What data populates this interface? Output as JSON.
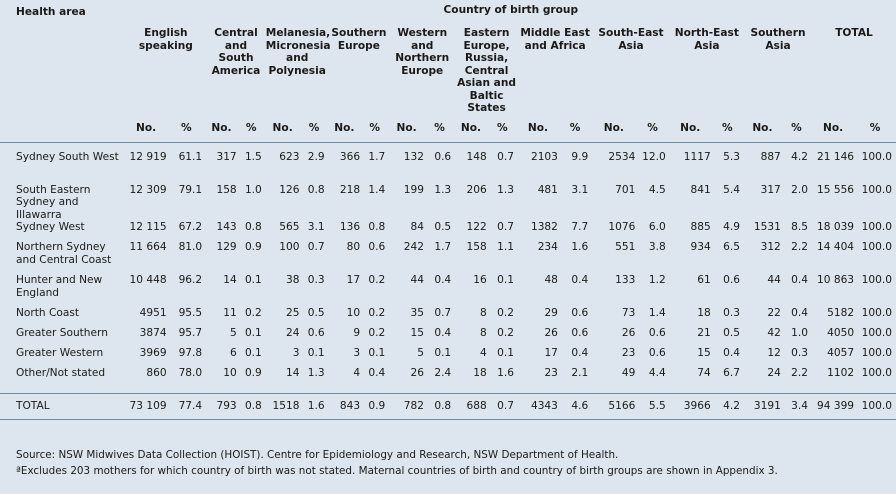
{
  "table": {
    "health_area_header": "Health area",
    "group_header": "Country of birth group",
    "columns": [
      "English speaking",
      "Central and South America",
      "Melanesia, Micronesia and Polynesia",
      "Southern Europe",
      "Western and Northern Europe",
      "Eastern Europe, Russia, Central Asian and Baltic States",
      "Middle East and Africa",
      "South-East Asia",
      "North-East Asia",
      "Southern Asia",
      "TOTAL"
    ],
    "no_label": "No.",
    "pct_label": "%",
    "rows": [
      {
        "area": "Sydney South West",
        "v": [
          "12 919",
          "61.1",
          "317",
          "1.5",
          "623",
          "2.9",
          "366",
          "1.7",
          "132",
          "0.6",
          "148",
          "0.7",
          "2103",
          "9.9",
          "2534",
          "12.0",
          "1117",
          "5.3",
          "887",
          "4.2",
          "21 146",
          "100.0"
        ]
      },
      {
        "area": "South Eastern Sydney and Illawarra",
        "v": [
          "12 309",
          "79.1",
          "158",
          "1.0",
          "126",
          "0.8",
          "218",
          "1.4",
          "199",
          "1.3",
          "206",
          "1.3",
          "481",
          "3.1",
          "701",
          "4.5",
          "841",
          "5.4",
          "317",
          "2.0",
          "15 556",
          "100.0"
        ]
      },
      {
        "area": "Sydney West",
        "v": [
          "12 115",
          "67.2",
          "143",
          "0.8",
          "565",
          "3.1",
          "136",
          "0.8",
          "84",
          "0.5",
          "122",
          "0.7",
          "1382",
          "7.7",
          "1076",
          "6.0",
          "885",
          "4.9",
          "1531",
          "8.5",
          "18 039",
          "100.0"
        ]
      },
      {
        "area": "Northern Sydney and Central Coast",
        "v": [
          "11 664",
          "81.0",
          "129",
          "0.9",
          "100",
          "0.7",
          "80",
          "0.6",
          "242",
          "1.7",
          "158",
          "1.1",
          "234",
          "1.6",
          "551",
          "3.8",
          "934",
          "6.5",
          "312",
          "2.2",
          "14 404",
          "100.0"
        ]
      },
      {
        "area": "Hunter and New England",
        "v": [
          "10 448",
          "96.2",
          "14",
          "0.1",
          "38",
          "0.3",
          "17",
          "0.2",
          "44",
          "0.4",
          "16",
          "0.1",
          "48",
          "0.4",
          "133",
          "1.2",
          "61",
          "0.6",
          "44",
          "0.4",
          "10 863",
          "100.0"
        ]
      },
      {
        "area": "North Coast",
        "v": [
          "4951",
          "95.5",
          "11",
          "0.2",
          "25",
          "0.5",
          "10",
          "0.2",
          "35",
          "0.7",
          "8",
          "0.2",
          "29",
          "0.6",
          "73",
          "1.4",
          "18",
          "0.3",
          "22",
          "0.4",
          "5182",
          "100.0"
        ]
      },
      {
        "area": "Greater Southern",
        "v": [
          "3874",
          "95.7",
          "5",
          "0.1",
          "24",
          "0.6",
          "9",
          "0.2",
          "15",
          "0.4",
          "8",
          "0.2",
          "26",
          "0.6",
          "26",
          "0.6",
          "21",
          "0.5",
          "42",
          "1.0",
          "4050",
          "100.0"
        ]
      },
      {
        "area": "Greater Western",
        "v": [
          "3969",
          "97.8",
          "6",
          "0.1",
          "3",
          "0.1",
          "3",
          "0.1",
          "5",
          "0.1",
          "4",
          "0.1",
          "17",
          "0.4",
          "23",
          "0.6",
          "15",
          "0.4",
          "12",
          "0.3",
          "4057",
          "100.0"
        ]
      },
      {
        "area": "Other/Not stated",
        "v": [
          "860",
          "78.0",
          "10",
          "0.9",
          "14",
          "1.3",
          "4",
          "0.4",
          "26",
          "2.4",
          "18",
          "1.6",
          "23",
          "2.1",
          "49",
          "4.4",
          "74",
          "6.7",
          "24",
          "2.2",
          "1102",
          "100.0"
        ]
      }
    ],
    "total_row": {
      "area": "TOTAL",
      "v": [
        "73 109",
        "77.4",
        "793",
        "0.8",
        "1518",
        "1.6",
        "843",
        "0.9",
        "782",
        "0.8",
        "688",
        "0.7",
        "4343",
        "4.6",
        "5166",
        "5.5",
        "3966",
        "4.2",
        "3191",
        "3.4",
        "94 399",
        "100.0"
      ]
    }
  },
  "footer": {
    "source": "Source: NSW Midwives Data Collection (HOIST). Centre for Epidemiology and Research, NSW Department of Health.",
    "note": "ªExcludes 203 mothers for which country of birth was not stated. Maternal countries of birth and country of birth groups are shown in Appendix 3."
  }
}
